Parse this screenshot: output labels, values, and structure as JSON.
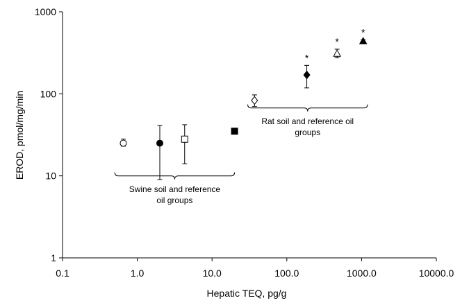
{
  "chart_data": {
    "type": "scatter",
    "title": "",
    "xlabel": "Hepatic TEQ, pg/g",
    "ylabel": "EROD, pmol/mg/min",
    "xscale": "log",
    "yscale": "log",
    "xlim": [
      0.1,
      10000
    ],
    "ylim": [
      1,
      1000
    ],
    "xticks": [
      0.1,
      1,
      10,
      100,
      1000,
      10000
    ],
    "xtick_labels": [
      "0.1",
      "1.0",
      "10.0",
      "100.0",
      "1000.0",
      "10000.0"
    ],
    "yticks": [
      1,
      10,
      100,
      1000
    ],
    "ytick_labels": [
      "1",
      "10",
      "100",
      "1000"
    ],
    "grid": false,
    "points": [
      {
        "x": 0.65,
        "y": 25,
        "y_low": 23,
        "y_high": 28,
        "marker": "circle",
        "filled": false,
        "significant": false
      },
      {
        "x": 2.0,
        "y": 25,
        "y_low": 9,
        "y_high": 41,
        "marker": "circle",
        "filled": true,
        "significant": false
      },
      {
        "x": 4.3,
        "y": 28,
        "y_low": 14,
        "y_high": 42,
        "marker": "square",
        "filled": false,
        "significant": false
      },
      {
        "x": 20,
        "y": 35,
        "marker": "square",
        "filled": true,
        "significant": false
      },
      {
        "x": 37,
        "y": 83,
        "y_low": 70,
        "y_high": 97,
        "marker": "diamond",
        "filled": false,
        "significant": false
      },
      {
        "x": 185,
        "y": 170,
        "y_low": 118,
        "y_high": 222,
        "marker": "diamond",
        "filled": true,
        "significant": true
      },
      {
        "x": 470,
        "y": 310,
        "y_low": 275,
        "y_high": 350,
        "marker": "triangle",
        "filled": false,
        "significant": true
      },
      {
        "x": 1050,
        "y": 440,
        "y_low": 420,
        "y_high": 455,
        "marker": "triangle",
        "filled": true,
        "significant": true
      }
    ],
    "significance_marker": "*",
    "annotations": [
      {
        "text_lines": [
          "Swine soil and reference",
          "oil groups"
        ],
        "brace_x": [
          0.5,
          20
        ],
        "brace_y": 11
      },
      {
        "text_lines": [
          "Rat soil and reference oil",
          "groups"
        ],
        "brace_x": [
          30,
          1200
        ],
        "brace_y": 74
      }
    ]
  }
}
